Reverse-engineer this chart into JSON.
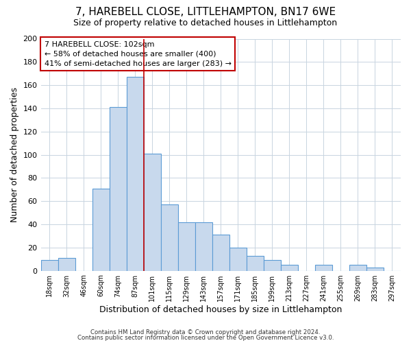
{
  "title": "7, HAREBELL CLOSE, LITTLEHAMPTON, BN17 6WE",
  "subtitle": "Size of property relative to detached houses in Littlehampton",
  "xlabel": "Distribution of detached houses by size in Littlehampton",
  "ylabel": "Number of detached properties",
  "bin_labels": [
    "18sqm",
    "32sqm",
    "46sqm",
    "60sqm",
    "74sqm",
    "87sqm",
    "101sqm",
    "115sqm",
    "129sqm",
    "143sqm",
    "157sqm",
    "171sqm",
    "185sqm",
    "199sqm",
    "213sqm",
    "227sqm",
    "241sqm",
    "255sqm",
    "269sqm",
    "283sqm",
    "297sqm"
  ],
  "bin_values": [
    9,
    11,
    0,
    71,
    141,
    167,
    101,
    57,
    42,
    42,
    31,
    20,
    13,
    9,
    5,
    0,
    5,
    0,
    5,
    3,
    0
  ],
  "bar_color": "#c8d9ed",
  "bar_edge_color": "#5b9bd5",
  "vline_color": "#c00000",
  "vline_index": 6,
  "annotation_text": "7 HAREBELL CLOSE: 102sqm\n← 58% of detached houses are smaller (400)\n41% of semi-detached houses are larger (283) →",
  "annotation_box_edge": "#c00000",
  "ylim": [
    0,
    200
  ],
  "yticks": [
    0,
    20,
    40,
    60,
    80,
    100,
    120,
    140,
    160,
    180,
    200
  ],
  "footnote1": "Contains HM Land Registry data © Crown copyright and database right 2024.",
  "footnote2": "Contains public sector information licensed under the Open Government Licence v3.0.",
  "title_fontsize": 11,
  "subtitle_fontsize": 9,
  "xlabel_fontsize": 9,
  "ylabel_fontsize": 9,
  "background_color": "#ffffff",
  "grid_color": "#c8d4e0"
}
